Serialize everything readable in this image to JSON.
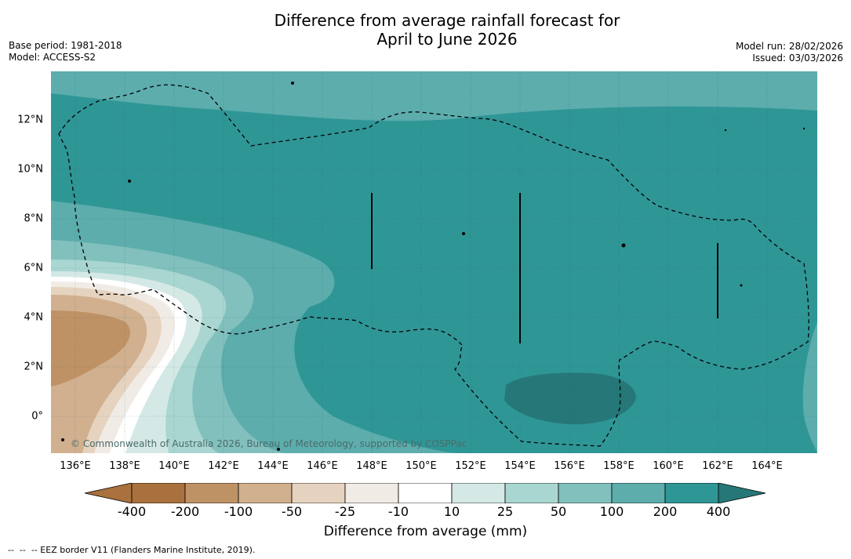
{
  "title": {
    "line1": "Difference from average rainfall forecast for",
    "line2": "April to June 2026"
  },
  "meta_left": {
    "base_period": "Base period: 1981-2018",
    "model": "Model: ACCESS-S2"
  },
  "meta_right": {
    "model_run": "Model run: 28/02/2026",
    "issued": "Issued: 03/03/2026"
  },
  "map": {
    "x_ticks": [
      "136°E",
      "138°E",
      "140°E",
      "142°E",
      "144°E",
      "146°E",
      "148°E",
      "150°E",
      "152°E",
      "154°E",
      "156°E",
      "158°E",
      "160°E",
      "162°E",
      "164°E"
    ],
    "y_ticks": [
      "12°N",
      "10°N",
      "8°N",
      "6°N",
      "4°N",
      "2°N",
      "0°"
    ],
    "copyright": "© Commonwealth of Australia 2026, Bureau of Meteorology, supported by COSPPac"
  },
  "colorbar": {
    "labels": [
      "-400",
      "-200",
      "-100",
      "-50",
      "-25",
      "-10",
      "10",
      "25",
      "50",
      "100",
      "200",
      "400"
    ],
    "colors": [
      "#a9713d",
      "#bf9265",
      "#d1b08f",
      "#e6d3bf",
      "#f1ebe6",
      "#ffffff",
      "#d4e9e6",
      "#a9d6d1",
      "#82c0bd",
      "#5dadad",
      "#2f9696",
      "#267878"
    ],
    "title": "Difference from average (mm)"
  },
  "footnote": "--  --  -- EEZ border V11 (Flanders Marine Institute, 2019)."
}
